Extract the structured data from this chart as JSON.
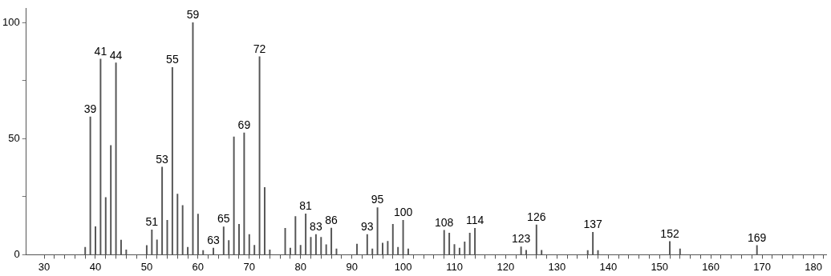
{
  "chart_data": {
    "type": "bar",
    "color": "#555555",
    "x": [
      38,
      39,
      40,
      41,
      42,
      43,
      44,
      45,
      46,
      50,
      51,
      52,
      53,
      54,
      55,
      56,
      57,
      58,
      59,
      60,
      61,
      63,
      65,
      66,
      67,
      68,
      69,
      70,
      71,
      72,
      73,
      74,
      77,
      78,
      79,
      80,
      81,
      82,
      83,
      84,
      85,
      86,
      87,
      91,
      93,
      94,
      95,
      96,
      97,
      98,
      99,
      100,
      101,
      108,
      109,
      110,
      111,
      112,
      113,
      114,
      123,
      124,
      126,
      127,
      136,
      137,
      138,
      152,
      154,
      169
    ],
    "values": [
      3.2,
      59.4,
      12.1,
      84.3,
      24.7,
      47.1,
      82.6,
      6.3,
      2.1,
      4.0,
      10.7,
      6.4,
      37.8,
      14.8,
      80.7,
      26.1,
      21.2,
      3.2,
      100,
      17.5,
      1.8,
      2.9,
      12.0,
      6.1,
      50.8,
      13.1,
      52.5,
      8.7,
      4.1,
      85.3,
      29.0,
      2.1,
      11.4,
      2.9,
      16.5,
      4.1,
      17.6,
      7.5,
      8.7,
      7.5,
      4.3,
      11.5,
      2.5,
      4.6,
      8.7,
      2.5,
      20.3,
      5.0,
      5.8,
      13.1,
      3.2,
      14.8,
      2.5,
      10.5,
      9.3,
      4.4,
      2.9,
      5.5,
      9.3,
      11.4,
      3.4,
      1.9,
      12.9,
      1.9,
      1.8,
      9.7,
      1.8,
      5.7,
      2.5,
      4.0
    ],
    "xlim": [
      26.5,
      182.5
    ],
    "xticks": [
      30,
      {
        "value": 32,
        "label": null
      },
      {
        "value": 34,
        "label": null
      },
      {
        "value": 36,
        "label": null
      },
      {
        "value": 38,
        "label": null
      },
      40,
      {
        "value": 42,
        "label": null
      },
      {
        "value": 44,
        "label": null
      },
      {
        "value": 46,
        "label": null
      },
      {
        "value": 48,
        "label": null
      },
      50,
      {
        "value": 52,
        "label": null
      },
      {
        "value": 54,
        "label": null
      },
      {
        "value": 56,
        "label": null
      },
      {
        "value": 58,
        "label": null
      },
      60,
      {
        "value": 62,
        "label": null
      },
      {
        "value": 64,
        "label": null
      },
      {
        "value": 66,
        "label": null
      },
      {
        "value": 68,
        "label": null
      },
      70,
      {
        "value": 72,
        "label": null
      },
      {
        "value": 74,
        "label": null
      },
      {
        "value": 76,
        "label": null
      },
      {
        "value": 78,
        "label": null
      },
      80,
      {
        "value": 82,
        "label": null
      },
      {
        "value": 84,
        "label": null
      },
      {
        "value": 86,
        "label": null
      },
      {
        "value": 88,
        "label": null
      },
      90,
      {
        "value": 92,
        "label": null
      },
      {
        "value": 94,
        "label": null
      },
      {
        "value": 96,
        "label": null
      },
      {
        "value": 98,
        "label": null
      },
      100,
      {
        "value": 102,
        "label": null
      },
      {
        "value": 104,
        "label": null
      },
      {
        "value": 106,
        "label": null
      },
      {
        "value": 108,
        "label": null
      },
      110,
      {
        "value": 112,
        "label": null
      },
      {
        "value": 114,
        "label": null
      },
      {
        "value": 116,
        "label": null
      },
      {
        "value": 118,
        "label": null
      },
      120,
      {
        "value": 122,
        "label": null
      },
      {
        "value": 124,
        "label": null
      },
      {
        "value": 126,
        "label": null
      },
      {
        "value": 128,
        "label": null
      },
      130,
      {
        "value": 132,
        "label": null
      },
      {
        "value": 134,
        "label": null
      },
      {
        "value": 136,
        "label": null
      },
      {
        "value": 138,
        "label": null
      },
      140,
      {
        "value": 142,
        "label": null
      },
      {
        "value": 144,
        "label": null
      },
      {
        "value": 146,
        "label": null
      },
      {
        "value": 148,
        "label": null
      },
      150,
      {
        "value": 152,
        "label": null
      },
      {
        "value": 154,
        "label": null
      },
      {
        "value": 156,
        "label": null
      },
      {
        "value": 158,
        "label": null
      },
      160,
      {
        "value": 162,
        "label": null
      },
      {
        "value": 164,
        "label": null
      },
      {
        "value": 166,
        "label": null
      },
      {
        "value": 168,
        "label": null
      },
      170,
      {
        "value": 172,
        "label": null
      },
      {
        "value": 174,
        "label": null
      },
      {
        "value": 176,
        "label": null
      },
      {
        "value": 178,
        "label": null
      },
      180,
      {
        "value": 182,
        "label": null
      }
    ],
    "ylim": [
      0,
      106
    ],
    "yticks": [
      0,
      {
        "value": 25,
        "label": null
      },
      50,
      {
        "value": 75,
        "label": null
      },
      100
    ],
    "annotations": [
      {
        "text": "39",
        "x": 39,
        "y": 59.4
      },
      {
        "text": "41",
        "x": 41,
        "y": 84.3
      },
      {
        "text": "44",
        "x": 44,
        "y": 82.6
      },
      {
        "text": "51",
        "x": 51,
        "y": 10.7
      },
      {
        "text": "53",
        "x": 53,
        "y": 37.8
      },
      {
        "text": "55",
        "x": 55,
        "y": 80.7
      },
      {
        "text": "59",
        "x": 59,
        "y": 100
      },
      {
        "text": "63",
        "x": 63,
        "y": 2.9
      },
      {
        "text": "65",
        "x": 65,
        "y": 12.0
      },
      {
        "text": "69",
        "x": 69,
        "y": 52.5
      },
      {
        "text": "72",
        "x": 72,
        "y": 85.3
      },
      {
        "text": "81",
        "x": 81,
        "y": 17.6
      },
      {
        "text": "83",
        "x": 83,
        "y": 8.7
      },
      {
        "text": "86",
        "x": 86,
        "y": 11.5
      },
      {
        "text": "93",
        "x": 93,
        "y": 8.7
      },
      {
        "text": "95",
        "x": 95,
        "y": 20.3
      },
      {
        "text": "100",
        "x": 100,
        "y": 14.8
      },
      {
        "text": "108",
        "x": 108,
        "y": 10.5
      },
      {
        "text": "114",
        "x": 114,
        "y": 11.4
      },
      {
        "text": "123",
        "x": 123,
        "y": 3.4
      },
      {
        "text": "126",
        "x": 126,
        "y": 12.9
      },
      {
        "text": "137",
        "x": 137,
        "y": 9.7
      },
      {
        "text": "152",
        "x": 152,
        "y": 5.7
      },
      {
        "text": "169",
        "x": 169,
        "y": 4.0
      }
    ],
    "grid": false,
    "legend": false
  }
}
